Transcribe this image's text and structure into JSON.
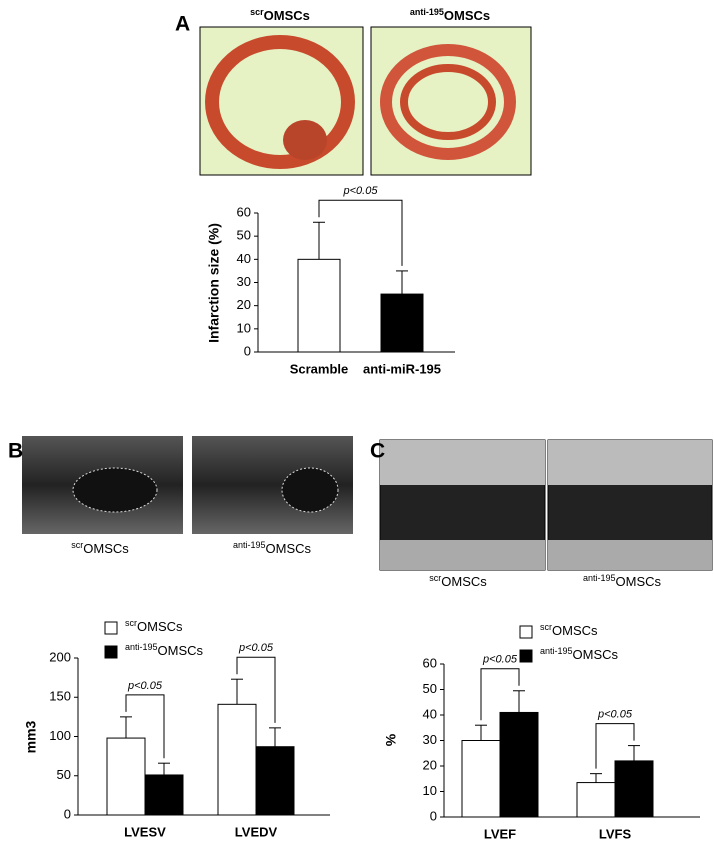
{
  "panel_labels": [
    "A",
    "B",
    "C"
  ],
  "images": [
    {
      "caption_sup": "scr",
      "caption": "OMSCs"
    },
    {
      "caption_sup": "anti-195",
      "caption": "OMSCs"
    },
    {
      "caption_sup": "scr",
      "caption": "OMSCs"
    },
    {
      "caption_sup": "anti-195",
      "caption": "OMSCs"
    },
    {
      "caption_sup": "scr",
      "caption": "OMSCs"
    },
    {
      "caption_sup": "anti-195",
      "caption": "OMSCs"
    }
  ],
  "chart_data": [
    {
      "type": "bar",
      "y_label": "Infarction size (%)",
      "categories": [
        "Scramble",
        "anti-miR-195"
      ],
      "values": [
        40,
        25
      ],
      "errors": [
        16,
        10
      ],
      "colors": [
        "#ffffff",
        "#000000"
      ],
      "ylim": [
        0,
        60
      ],
      "yticks": [
        0,
        10,
        20,
        30,
        40,
        50,
        60
      ],
      "annotations": [
        "p<0.05"
      ]
    },
    {
      "type": "grouped-bar",
      "y_label": "mm3",
      "categories": [
        "LVESV",
        "LVEDV"
      ],
      "series": [
        {
          "name_sup": "scr",
          "name": "OMSCs",
          "color": "#ffffff",
          "values": [
            98,
            141
          ],
          "errors": [
            27,
            32
          ]
        },
        {
          "name_sup": "anti-195",
          "name": "OMSCs",
          "color": "#000000",
          "values": [
            51,
            87
          ],
          "errors": [
            15,
            24
          ]
        }
      ],
      "ylim": [
        0,
        200
      ],
      "yticks": [
        0,
        50,
        100,
        150,
        200
      ],
      "annotations": [
        "p<0.05",
        "p<0.05"
      ]
    },
    {
      "type": "grouped-bar",
      "y_label": "%",
      "categories": [
        "LVEF",
        "LVFS"
      ],
      "series": [
        {
          "name_sup": "scr",
          "name": "OMSCs",
          "color": "#ffffff",
          "values": [
            30,
            13.5
          ],
          "errors": [
            6,
            3.5
          ]
        },
        {
          "name_sup": "anti-195",
          "name": "OMSCs",
          "color": "#000000",
          "values": [
            41,
            22
          ],
          "errors": [
            8.5,
            6
          ]
        }
      ],
      "ylim": [
        0,
        60
      ],
      "yticks": [
        0,
        10,
        20,
        30,
        40,
        50,
        60
      ],
      "annotations": [
        "p<0.05",
        "p<0.05"
      ]
    }
  ]
}
